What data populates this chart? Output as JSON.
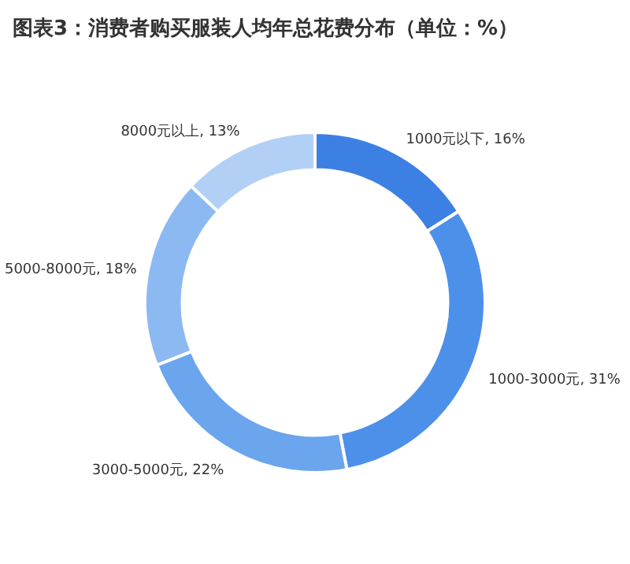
{
  "chart_data": {
    "type": "donut",
    "title": "图表3：消费者购买服装人均年总花费分布（单位：%）",
    "categories": [
      "1000元以下",
      "1000-3000元",
      "3000-5000元",
      "5000-8000元",
      "8000元以上"
    ],
    "values": [
      16,
      31,
      22,
      18,
      13
    ],
    "colors": [
      "#3d80e3",
      "#4d90ea",
      "#6aa5ee",
      "#8db9f2",
      "#b2d0f6"
    ],
    "value_labels": [
      ", 16%",
      ", 31%",
      ", 22%",
      ", 18%",
      ", 13%"
    ]
  }
}
